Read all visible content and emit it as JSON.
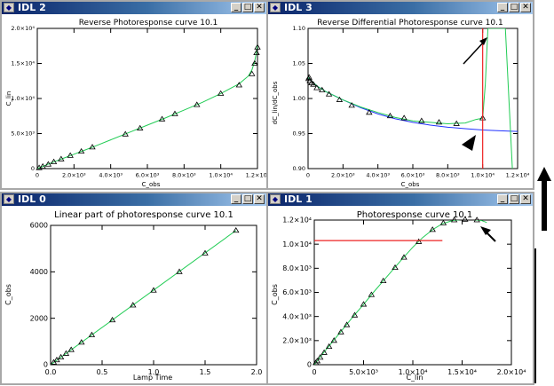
{
  "windows": {
    "idl2": {
      "title": "IDL 2",
      "plot_title": "Reverse Photoresponse curve  10.1",
      "xlabel": "C_obs",
      "ylabel": "C_lin"
    },
    "idl3": {
      "title": "IDL 3",
      "plot_title": "Reverse Differential Photoresponse curve  10.1",
      "xlabel": "C_obs",
      "ylabel": "dC_lin/dC_obs"
    },
    "idl0": {
      "title": "IDL 0",
      "plot_title": "Linear part of photoresponse curve  10.1",
      "xlabel": "Lamp Time",
      "ylabel": "C_obs"
    },
    "idl1": {
      "title": "IDL 1",
      "plot_title": "Photoresponse curve  10.1",
      "xlabel": "C_lin",
      "ylabel": "C_obs"
    }
  },
  "buttons": {
    "minimize": "_",
    "maximize": "□",
    "close": "✕"
  },
  "icons": {
    "window_icon": "idl-window-icon",
    "arrow": "arrow-annotation-icon"
  },
  "colors": {
    "fit_line": "#22cc55",
    "model_line": "#2233ff",
    "limit_line": "#ee2222",
    "marker": "#000000",
    "title_bar_start": "#0a246a",
    "title_bar_end": "#a6caf0"
  },
  "chart_data": [
    {
      "id": "idl2",
      "type": "line",
      "title": "Reverse Photoresponse curve  10.1",
      "xlabel": "C_obs",
      "ylabel": "C_lin",
      "xlim": [
        0,
        12000
      ],
      "ylim": [
        0,
        20000
      ],
      "xticks": [
        0,
        2000,
        4000,
        6000,
        8000,
        10000,
        12000
      ],
      "xtick_labels": [
        "0",
        "2.0×10³",
        "4.0×10³",
        "6.0×10³",
        "8.0×10³",
        "1.0×10⁴",
        "1.2×10⁴"
      ],
      "yticks": [
        0,
        5000,
        10000,
        15000,
        20000
      ],
      "ytick_labels": [
        "0",
        "5.0×10³",
        "1.0×10⁴",
        "1.5×10⁴",
        "2.0×10⁴"
      ],
      "series": [
        {
          "style": "line",
          "color": "#22cc55",
          "x": [
            0,
            300,
            600,
            1000,
            1500,
            2000,
            2500,
            3000,
            4000,
            5000,
            6000,
            7000,
            8000,
            9000,
            10000,
            11000,
            11500,
            11700,
            11850,
            11950,
            12000
          ],
          "y": [
            0,
            300,
            650,
            1050,
            1550,
            2050,
            2550,
            3050,
            4100,
            5150,
            6200,
            7250,
            8350,
            9450,
            10700,
            12100,
            13200,
            14100,
            15300,
            16700,
            17700
          ]
        },
        {
          "style": "markers",
          "marker": "triangle",
          "x": [
            100,
            300,
            600,
            900,
            1300,
            1800,
            2400,
            3000,
            4800,
            5600,
            6800,
            7500,
            8700,
            10000,
            11000,
            11700,
            11850,
            11950,
            12000
          ],
          "y": [
            100,
            300,
            600,
            950,
            1350,
            1850,
            2450,
            3050,
            4900,
            5750,
            7050,
            7800,
            9100,
            10700,
            11900,
            13500,
            15000,
            16500,
            17300
          ]
        }
      ]
    },
    {
      "id": "idl3",
      "type": "line",
      "title": "Reverse Differential Photoresponse curve  10.1",
      "xlabel": "C_obs",
      "ylabel": "dC_lin/dC_obs",
      "xlim": [
        0,
        12000
      ],
      "ylim": [
        0.9,
        1.1
      ],
      "xticks": [
        0,
        2000,
        4000,
        6000,
        8000,
        10000,
        12000
      ],
      "xtick_labels": [
        "0",
        "2.0×10³",
        "4.0×10³",
        "6.0×10³",
        "8.0×10³",
        "1.0×10⁴",
        "1.2×10⁴"
      ],
      "yticks": [
        0.9,
        0.95,
        1.0,
        1.05,
        1.1
      ],
      "ytick_labels": [
        "0.90",
        "0.95",
        "1.00",
        "1.05",
        "1.10"
      ],
      "series": [
        {
          "style": "line",
          "color": "#2233ff",
          "x": [
            0,
            500,
            1000,
            2000,
            3000,
            4000,
            5000,
            6000,
            7000,
            8000,
            9000,
            10000,
            11000,
            12000
          ],
          "y": [
            1.03,
            1.018,
            1.01,
            0.998,
            0.987,
            0.978,
            0.971,
            0.966,
            0.962,
            0.959,
            0.957,
            0.955,
            0.954,
            0.953
          ]
        },
        {
          "style": "line",
          "color": "#22cc55",
          "x": [
            0,
            500,
            1000,
            2000,
            3000,
            4000,
            5000,
            6000,
            7000,
            8000,
            9000,
            9600,
            10000,
            10150,
            10300,
            11300,
            11700
          ],
          "y": [
            1.03,
            1.018,
            1.01,
            0.998,
            0.988,
            0.98,
            0.973,
            0.968,
            0.966,
            0.964,
            0.965,
            0.97,
            0.972,
            1.02,
            1.1,
            1.1,
            0.9
          ]
        },
        {
          "style": "markers",
          "marker": "triangle",
          "x": [
            30,
            60,
            100,
            200,
            300,
            500,
            800,
            1200,
            1800,
            2500,
            3500,
            4700,
            5500,
            6500,
            7500,
            8500,
            10000
          ],
          "y": [
            1.028,
            1.03,
            1.025,
            1.022,
            1.02,
            1.015,
            1.012,
            1.006,
            0.998,
            0.99,
            0.98,
            0.975,
            0.972,
            0.968,
            0.966,
            0.964,
            0.972
          ]
        },
        {
          "style": "vline",
          "color": "#ee2222",
          "x": 10000,
          "y": [
            0.9,
            1.1
          ]
        }
      ]
    },
    {
      "id": "idl0",
      "type": "line",
      "title": "Linear part of photoresponse curve  10.1",
      "xlabel": "Lamp Time",
      "ylabel": "C_obs",
      "xlim": [
        0,
        2.0
      ],
      "ylim": [
        0,
        6000
      ],
      "xticks": [
        0,
        0.5,
        1.0,
        1.5,
        2.0
      ],
      "xtick_labels": [
        "0.0",
        "0.5",
        "1.0",
        "1.5",
        "2.0"
      ],
      "yticks": [
        0,
        2000,
        4000,
        6000
      ],
      "ytick_labels": [
        "0",
        "2000",
        "4000",
        "6000"
      ],
      "series": [
        {
          "style": "line",
          "color": "#22cc55",
          "x": [
            0,
            1.8
          ],
          "y": [
            0,
            5780
          ]
        },
        {
          "style": "markers",
          "marker": "triangle",
          "x": [
            0.03,
            0.06,
            0.1,
            0.15,
            0.2,
            0.3,
            0.4,
            0.6,
            0.8,
            1.0,
            1.25,
            1.5,
            1.8
          ],
          "y": [
            100,
            200,
            320,
            480,
            640,
            960,
            1280,
            1920,
            2560,
            3200,
            4000,
            4800,
            5780
          ]
        }
      ]
    },
    {
      "id": "idl1",
      "type": "line",
      "title": "Photoresponse curve  10.1",
      "xlabel": "C_lin",
      "ylabel": "C_obs",
      "xlim": [
        0,
        20000
      ],
      "ylim": [
        0,
        12000
      ],
      "xticks": [
        0,
        5000,
        10000,
        15000,
        20000
      ],
      "xtick_labels": [
        "0",
        "5.0×10³",
        "1.0×10⁴",
        "1.5×10⁴",
        "2.0×10⁴"
      ],
      "yticks": [
        0,
        2000,
        4000,
        6000,
        8000,
        10000,
        12000
      ],
      "ytick_labels": [
        "0",
        "2.0×10³",
        "4.0×10³",
        "6.0×10³",
        "8.0×10³",
        "1.0×10⁴",
        "1.2×10⁴"
      ],
      "series": [
        {
          "style": "line",
          "color": "#22cc55",
          "x": [
            0,
            1000,
            2000,
            3000,
            4000,
            5000,
            6000,
            7000,
            8000,
            9000,
            10000,
            11000,
            12000,
            13000,
            14000,
            15000,
            16000,
            17000,
            17500
          ],
          "y": [
            0,
            1050,
            2050,
            3050,
            4050,
            5000,
            6000,
            6950,
            7900,
            8850,
            9750,
            10550,
            11200,
            11700,
            11950,
            12050,
            12050,
            11950,
            11800
          ]
        },
        {
          "style": "markers",
          "marker": "triangle",
          "x": [
            150,
            300,
            600,
            1000,
            1500,
            2000,
            2700,
            3300,
            4100,
            5000,
            5800,
            7000,
            8200,
            9100,
            10600,
            12000,
            13100,
            14200,
            15300,
            16500
          ],
          "y": [
            150,
            300,
            600,
            1000,
            1500,
            2000,
            2700,
            3300,
            4100,
            5000,
            5800,
            6950,
            8050,
            8900,
            10200,
            11200,
            11750,
            12000,
            12050,
            12000
          ]
        },
        {
          "style": "hline",
          "color": "#ee2222",
          "y": 10300,
          "x": [
            0,
            13000
          ]
        }
      ]
    }
  ]
}
